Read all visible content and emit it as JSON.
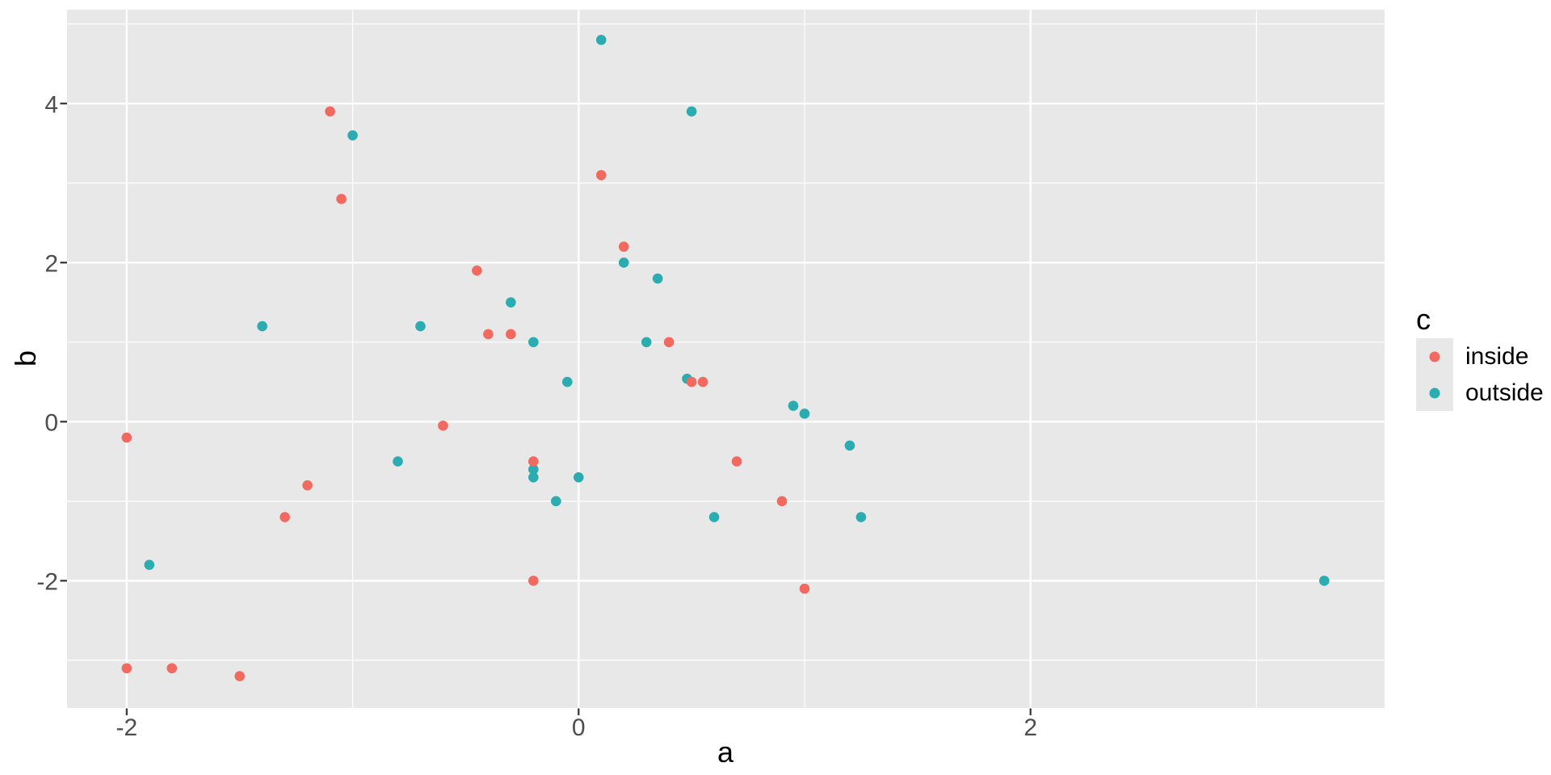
{
  "chart_data": {
    "type": "scatter",
    "title": "",
    "xlabel": "a",
    "ylabel": "b",
    "legend": {
      "title": "c",
      "position": "right"
    },
    "xlim": [
      -2.264,
      3.567
    ],
    "ylim": [
      -3.6,
      5.18
    ],
    "x_ticks": [
      {
        "value": -2,
        "label": "-2"
      },
      {
        "value": 0,
        "label": "0"
      },
      {
        "value": 2,
        "label": "2"
      }
    ],
    "y_ticks": [
      {
        "value": 4,
        "label": "4"
      },
      {
        "value": 2,
        "label": "2"
      },
      {
        "value": 0,
        "label": "0"
      },
      {
        "value": -2,
        "label": "-2"
      }
    ],
    "x_minor": [
      -1,
      1,
      3
    ],
    "y_minor": [
      -3,
      -1,
      1,
      3,
      5
    ],
    "grid": "major-and-minor",
    "colors": {
      "panel_bg": "#E8E8E8",
      "grid": "#FFFFFF",
      "tick_mark": "#333333",
      "tick_label": "#4D4D4D",
      "axis_title": "#000000",
      "legend_key_bg": "#E8E8E8",
      "inside": "#F1695F",
      "outside": "#2AACB0"
    },
    "series": [
      {
        "name": "inside",
        "color": "#F1695F",
        "points": [
          [
            -1.1,
            3.9
          ],
          [
            -1.05,
            2.8
          ],
          [
            0.1,
            3.1
          ],
          [
            0.2,
            2.2
          ],
          [
            -0.45,
            1.9
          ],
          [
            -0.4,
            1.1
          ],
          [
            -0.3,
            1.1
          ],
          [
            0.4,
            1.0
          ],
          [
            0.5,
            0.5
          ],
          [
            0.55,
            0.5
          ],
          [
            -2.0,
            -0.2
          ],
          [
            -0.6,
            -0.05
          ],
          [
            -0.2,
            -0.5
          ],
          [
            0.7,
            -0.5
          ],
          [
            -1.2,
            -0.8
          ],
          [
            -1.3,
            -1.2
          ],
          [
            0.9,
            -1.0
          ],
          [
            -0.2,
            -2.0
          ],
          [
            1.0,
            -2.1
          ],
          [
            -2.0,
            -3.1
          ],
          [
            -1.8,
            -3.1
          ],
          [
            -1.5,
            -3.2
          ]
        ]
      },
      {
        "name": "outside",
        "color": "#2AACB0",
        "points": [
          [
            0.1,
            4.8
          ],
          [
            0.5,
            3.9
          ],
          [
            -1.0,
            3.6
          ],
          [
            0.2,
            2.0
          ],
          [
            0.35,
            1.8
          ],
          [
            -0.3,
            1.5
          ],
          [
            -1.4,
            1.2
          ],
          [
            -0.7,
            1.2
          ],
          [
            -0.2,
            1.0
          ],
          [
            0.3,
            1.0
          ],
          [
            -0.05,
            0.5
          ],
          [
            0.48,
            0.54
          ],
          [
            0.95,
            0.2
          ],
          [
            1.0,
            0.1
          ],
          [
            1.2,
            -0.3
          ],
          [
            1.25,
            -1.2
          ],
          [
            -0.8,
            -0.5
          ],
          [
            -0.2,
            -0.6
          ],
          [
            -0.2,
            -0.7
          ],
          [
            0.0,
            -0.7
          ],
          [
            -0.1,
            -1.0
          ],
          [
            0.6,
            -1.2
          ],
          [
            -1.9,
            -1.8
          ],
          [
            3.3,
            -2.0
          ]
        ]
      }
    ]
  }
}
